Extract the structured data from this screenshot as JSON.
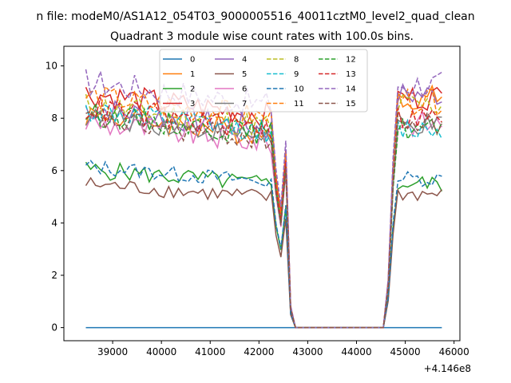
{
  "chart_data": {
    "type": "line",
    "suptitle": "n file: modeM0/AS1A12_054T03_9000005516_40011cztM0_level2_quad_clean",
    "title": "Quadrant 3 module wise count rates with 100.0s bins.",
    "xlabel": "",
    "ylabel": "",
    "x_offset_label": "+4.146e8",
    "xlim": [
      38000,
      46120
    ],
    "ylim": [
      -0.5,
      10.75
    ],
    "x_ticks": [
      39000,
      40000,
      41000,
      42000,
      43000,
      44000,
      45000,
      46000
    ],
    "x_tick_labels": [
      "39000",
      "40000",
      "41000",
      "42000",
      "43000",
      "44000",
      "45000",
      "46000"
    ],
    "y_ticks": [
      0,
      2,
      4,
      6,
      8,
      10
    ],
    "y_tick_labels": [
      "0",
      "2",
      "4",
      "6",
      "8",
      "10"
    ],
    "legend_position": "top-center",
    "x_start": 38450,
    "x_step": 100,
    "gap_start": 42650,
    "gap_end": 44550,
    "x_end": 45750,
    "series": [
      {
        "name": "0",
        "color": "#1f77b4",
        "dash": "solid",
        "level_pre": 0.0,
        "level_post": 0.0,
        "amp": 0.0
      },
      {
        "name": "1",
        "color": "#ff7f0e",
        "dash": "solid",
        "level_pre": 7.3,
        "level_post": 8.8,
        "amp": 0.5
      },
      {
        "name": "2",
        "color": "#2ca02c",
        "dash": "solid",
        "level_pre": 5.4,
        "level_post": 5.5,
        "amp": 0.35
      },
      {
        "name": "3",
        "color": "#d62728",
        "dash": "solid",
        "level_pre": 8.0,
        "level_post": 8.8,
        "amp": 0.5
      },
      {
        "name": "4",
        "color": "#9467bd",
        "dash": "solid",
        "level_pre": 7.5,
        "level_post": 8.9,
        "amp": 0.5
      },
      {
        "name": "5",
        "color": "#8c564b",
        "dash": "solid",
        "level_pre": 4.9,
        "level_post": 5.1,
        "amp": 0.3
      },
      {
        "name": "6",
        "color": "#e377c2",
        "dash": "solid",
        "level_pre": 7.0,
        "level_post": 7.8,
        "amp": 0.5
      },
      {
        "name": "7",
        "color": "#7f7f7f",
        "dash": "solid",
        "level_pre": 7.2,
        "level_post": 7.7,
        "amp": 0.4
      },
      {
        "name": "8",
        "color": "#bcbd22",
        "dash": "dashed",
        "level_pre": 7.6,
        "level_post": 8.5,
        "amp": 0.5
      },
      {
        "name": "9",
        "color": "#17becf",
        "dash": "dashed",
        "level_pre": 7.4,
        "level_post": 7.6,
        "amp": 0.45
      },
      {
        "name": "10",
        "color": "#1f77b4",
        "dash": "dashed",
        "level_pre": 5.5,
        "level_post": 5.7,
        "amp": 0.3
      },
      {
        "name": "11",
        "color": "#ff7f0e",
        "dash": "dashed",
        "level_pre": 7.9,
        "level_post": 8.6,
        "amp": 0.5
      },
      {
        "name": "12",
        "color": "#2ca02c",
        "dash": "dashed",
        "level_pre": 7.3,
        "level_post": 7.6,
        "amp": 0.45
      },
      {
        "name": "13",
        "color": "#d62728",
        "dash": "dashed",
        "level_pre": 7.5,
        "level_post": 8.0,
        "amp": 0.5
      },
      {
        "name": "14",
        "color": "#9467bd",
        "dash": "dashed",
        "level_pre": 8.4,
        "level_post": 9.3,
        "amp": 0.55
      },
      {
        "name": "15",
        "color": "#8c564b",
        "dash": "dashed",
        "level_pre": 7.1,
        "level_post": 7.8,
        "amp": 0.45
      }
    ]
  }
}
